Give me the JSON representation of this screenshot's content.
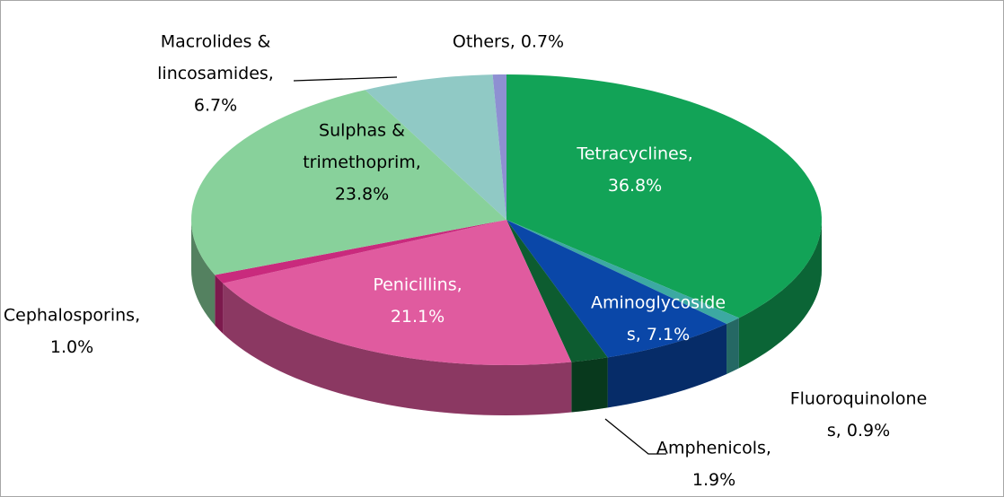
{
  "chart_data": {
    "type": "pie3d",
    "labels": [
      [
        "Tetracyclines,",
        "36.8%"
      ],
      [
        "Fluoroquinolone",
        "s, 0.9%"
      ],
      [
        "Aminoglycoside",
        "s, 7.1%"
      ],
      [
        "Amphenicols,",
        "1.9%"
      ],
      [
        "Penicillins,",
        "21.1%"
      ],
      [
        "Cephalosporins,",
        "1.0%"
      ],
      [
        "Sulphas &",
        "trimethoprim,",
        "23.8%"
      ],
      [
        "Macrolides &",
        "lincosamides,",
        "6.7%"
      ],
      [
        "Others, 0.7%"
      ]
    ],
    "values": [
      36.8,
      0.9,
      7.1,
      1.9,
      21.1,
      1.0,
      23.8,
      6.7,
      0.7
    ],
    "colors": [
      "#12a357",
      "#3ca9a2",
      "#0a47a8",
      "#0d5c30",
      "#e05b9f",
      "#c92a7d",
      "#88d19b",
      "#90c9c5",
      "#8e90d2"
    ]
  }
}
